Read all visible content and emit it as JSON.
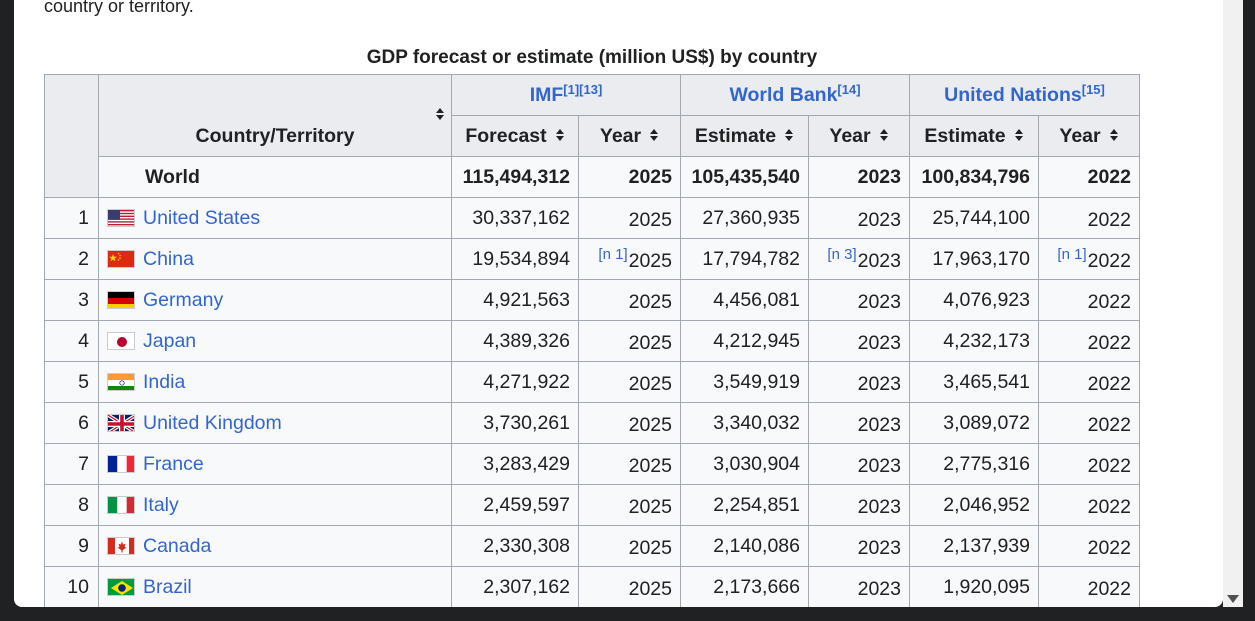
{
  "intro_text": "country or territory.",
  "caption": "GDP forecast or estimate (million US$) by country",
  "headers": {
    "country": "Country/Territory",
    "imf": "IMF",
    "imf_refs": "[1][13]",
    "wb": "World Bank",
    "wb_refs": "[14]",
    "un": "United Nations",
    "un_refs": "[15]",
    "forecast": "Forecast",
    "estimate": "Estimate",
    "year": "Year"
  },
  "world": {
    "name": "World",
    "imf": "115,494,312",
    "imf_year": "2025",
    "wb": "105,435,540",
    "wb_year": "2023",
    "un": "100,834,796",
    "un_year": "2022"
  },
  "rows": [
    {
      "rank": "1",
      "country": "United States",
      "flag": "us-flag-icon",
      "imf": "30,337,162",
      "imf_year": "2025",
      "wb": "27,360,935",
      "wb_year": "2023",
      "un": "25,744,100",
      "un_year": "2022",
      "imf_note": "",
      "wb_note": "",
      "un_note": ""
    },
    {
      "rank": "2",
      "country": "China",
      "flag": "china-flag-icon",
      "imf": "19,534,894",
      "imf_year": "2025",
      "wb": "17,794,782",
      "wb_year": "2023",
      "un": "17,963,170",
      "un_year": "2022",
      "imf_note": "[n 1]",
      "wb_note": "[n 3]",
      "un_note": "[n 1]"
    },
    {
      "rank": "3",
      "country": "Germany",
      "flag": "germany-flag-icon",
      "imf": "4,921,563",
      "imf_year": "2025",
      "wb": "4,456,081",
      "wb_year": "2023",
      "un": "4,076,923",
      "un_year": "2022",
      "imf_note": "",
      "wb_note": "",
      "un_note": ""
    },
    {
      "rank": "4",
      "country": "Japan",
      "flag": "japan-flag-icon",
      "imf": "4,389,326",
      "imf_year": "2025",
      "wb": "4,212,945",
      "wb_year": "2023",
      "un": "4,232,173",
      "un_year": "2022",
      "imf_note": "",
      "wb_note": "",
      "un_note": ""
    },
    {
      "rank": "5",
      "country": "India",
      "flag": "india-flag-icon",
      "imf": "4,271,922",
      "imf_year": "2025",
      "wb": "3,549,919",
      "wb_year": "2023",
      "un": "3,465,541",
      "un_year": "2022",
      "imf_note": "",
      "wb_note": "",
      "un_note": ""
    },
    {
      "rank": "6",
      "country": "United Kingdom",
      "flag": "uk-flag-icon",
      "imf": "3,730,261",
      "imf_year": "2025",
      "wb": "3,340,032",
      "wb_year": "2023",
      "un": "3,089,072",
      "un_year": "2022",
      "imf_note": "",
      "wb_note": "",
      "un_note": ""
    },
    {
      "rank": "7",
      "country": "France",
      "flag": "france-flag-icon",
      "imf": "3,283,429",
      "imf_year": "2025",
      "wb": "3,030,904",
      "wb_year": "2023",
      "un": "2,775,316",
      "un_year": "2022",
      "imf_note": "",
      "wb_note": "",
      "un_note": ""
    },
    {
      "rank": "8",
      "country": "Italy",
      "flag": "italy-flag-icon",
      "imf": "2,459,597",
      "imf_year": "2025",
      "wb": "2,254,851",
      "wb_year": "2023",
      "un": "2,046,952",
      "un_year": "2022",
      "imf_note": "",
      "wb_note": "",
      "un_note": ""
    },
    {
      "rank": "9",
      "country": "Canada",
      "flag": "canada-flag-icon",
      "imf": "2,330,308",
      "imf_year": "2025",
      "wb": "2,140,086",
      "wb_year": "2023",
      "un": "2,137,939",
      "un_year": "2022",
      "imf_note": "",
      "wb_note": "",
      "un_note": ""
    },
    {
      "rank": "10",
      "country": "Brazil",
      "flag": "brazil-flag-icon",
      "imf": "2,307,162",
      "imf_year": "2025",
      "wb": "2,173,666",
      "wb_year": "2023",
      "un": "1,920,095",
      "un_year": "2022",
      "imf_note": "",
      "wb_note": "",
      "un_note": ""
    }
  ],
  "colors": {
    "link": "#3366cc",
    "header_bg": "#eaecf0",
    "cell_bg": "#f8f9fa",
    "border": "#a2a9b1"
  }
}
